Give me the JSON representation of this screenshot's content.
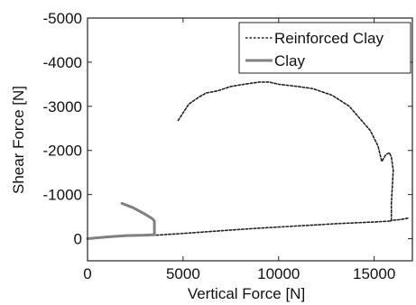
{
  "chart_data": {
    "type": "line",
    "title": "",
    "xlabel": "Vertical Force [N]",
    "ylabel": "Shear Force [N]",
    "xlim": [
      0,
      17000
    ],
    "ylim": [
      500,
      -5000
    ],
    "y_axis_inverted": true,
    "grid": false,
    "legend_position": "top-right",
    "x_ticks": [
      0,
      5000,
      10000,
      15000
    ],
    "y_ticks": [
      -5000,
      -4000,
      -3000,
      -2000,
      -1000,
      0
    ],
    "series": [
      {
        "name": "Reinforced Clay",
        "style": "dashed",
        "color": "#222222",
        "points": [
          [
            0,
            0
          ],
          [
            1500,
            -50
          ],
          [
            3000,
            -75
          ],
          [
            3600,
            -80
          ],
          [
            5000,
            -120
          ],
          [
            7000,
            -180
          ],
          [
            9000,
            -240
          ],
          [
            11000,
            -290
          ],
          [
            13000,
            -340
          ],
          [
            15000,
            -380
          ],
          [
            15800,
            -400
          ],
          [
            15900,
            -410
          ],
          [
            15900,
            -800
          ],
          [
            15950,
            -1200
          ],
          [
            16000,
            -1550
          ],
          [
            15900,
            -1850
          ],
          [
            15800,
            -1950
          ],
          [
            15600,
            -1900
          ],
          [
            15400,
            -1750
          ],
          [
            15200,
            -2100
          ],
          [
            14800,
            -2450
          ],
          [
            14300,
            -2700
          ],
          [
            13700,
            -3000
          ],
          [
            12800,
            -3250
          ],
          [
            11800,
            -3400
          ],
          [
            11000,
            -3450
          ],
          [
            10000,
            -3500
          ],
          [
            9500,
            -3550
          ],
          [
            9000,
            -3550
          ],
          [
            8200,
            -3500
          ],
          [
            7500,
            -3450
          ],
          [
            6800,
            -3350
          ],
          [
            6200,
            -3300
          ],
          [
            5800,
            -3200
          ],
          [
            5300,
            -3050
          ],
          [
            4700,
            -2650
          ],
          [
            16000,
            -420
          ],
          [
            16300,
            -430
          ],
          [
            16600,
            -450
          ],
          [
            16800,
            -470
          ]
        ]
      },
      {
        "name": "Clay",
        "style": "solid",
        "color": "#808080",
        "points": [
          [
            0,
            0
          ],
          [
            1000,
            -40
          ],
          [
            2000,
            -70
          ],
          [
            3000,
            -80
          ],
          [
            3500,
            -90
          ],
          [
            3500,
            -400
          ],
          [
            3400,
            -450
          ],
          [
            3000,
            -560
          ],
          [
            2400,
            -700
          ],
          [
            1800,
            -800
          ]
        ]
      }
    ]
  }
}
